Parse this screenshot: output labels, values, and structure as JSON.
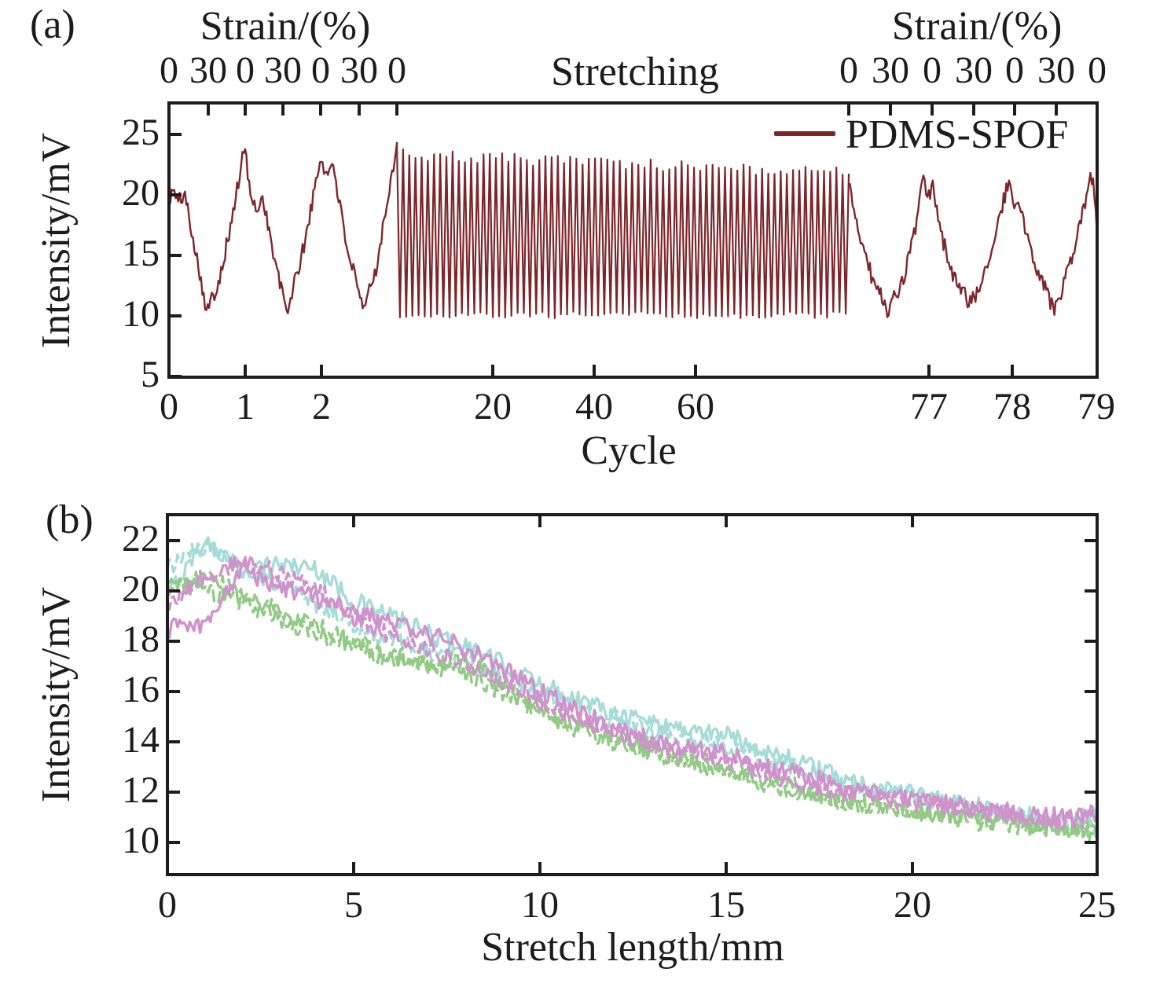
{
  "chart_data": [
    {
      "id": "a",
      "type": "line",
      "panel_label": "(a)",
      "ylabel": "Intensity/mV",
      "xlabel": "Cycle",
      "y_tick_labels": [
        "25",
        "20",
        "15",
        "10",
        "5"
      ],
      "x_tick_labels": [
        "0",
        "1",
        "2",
        "20",
        "40",
        "60",
        "77",
        "78",
        "79"
      ],
      "ylim": [
        5,
        27.6
      ],
      "x_scale": "piecewise broken axis: cycles 0-3 expanded, 3-76 compressed, 77-79 expanded",
      "top_axis": {
        "title_left": "Strain/(%)",
        "title_right": "Strain/(%)",
        "center_annotation": "Stretching",
        "tick_labels_left": [
          "0",
          "30",
          "0",
          "30",
          "0",
          "30",
          "0"
        ],
        "tick_labels_right": [
          "0",
          "30",
          "0",
          "30",
          "0",
          "30",
          "0"
        ]
      },
      "legend": [
        {
          "label": "PDMS-SPOF",
          "color": "#7d262a",
          "line": "solid"
        }
      ],
      "series_color": "#7d262a",
      "noise_mV": 0.7,
      "left_cycles_envelope": [
        [
          0,
          19.6
        ],
        [
          0.06,
          20.4
        ],
        [
          0.12,
          19.3
        ],
        [
          0.2,
          20.2
        ],
        [
          0.32,
          16.5
        ],
        [
          0.5,
          10.3
        ],
        [
          0.64,
          12.6
        ],
        [
          0.8,
          17.0
        ],
        [
          1.0,
          24.1
        ],
        [
          1.07,
          19.8
        ],
        [
          1.14,
          18.8
        ],
        [
          1.24,
          19.8
        ],
        [
          1.38,
          14.8
        ],
        [
          1.55,
          10.3
        ],
        [
          1.75,
          15.0
        ],
        [
          2.0,
          23.1
        ],
        [
          2.08,
          21.5
        ],
        [
          2.16,
          22.8
        ],
        [
          2.3,
          17.0
        ],
        [
          2.55,
          10.3
        ],
        [
          2.72,
          13.8
        ],
        [
          2.9,
          20.5
        ],
        [
          3.0,
          24.3
        ]
      ],
      "dense_section": {
        "cycle_start": 3,
        "cycle_end": 76,
        "num_cycles": 73,
        "first_peak_mV": 24.3,
        "peak_start_mV": 23.3,
        "peak_end_mV": 21.8,
        "valley_mV": 9.8
      },
      "right_cycles_envelope": [
        [
          76.04,
          20.8
        ],
        [
          76.16,
          17.0
        ],
        [
          76.32,
          13.2
        ],
        [
          76.5,
          10.5
        ],
        [
          76.66,
          12.2
        ],
        [
          76.82,
          16.5
        ],
        [
          76.93,
          21.6
        ],
        [
          76.98,
          19.2
        ],
        [
          77.04,
          20.9
        ],
        [
          77.14,
          16.8
        ],
        [
          77.32,
          12.8
        ],
        [
          77.5,
          10.9
        ],
        [
          77.7,
          14.2
        ],
        [
          77.88,
          19.2
        ],
        [
          77.95,
          21.2
        ],
        [
          78.01,
          18.7
        ],
        [
          78.07,
          19.5
        ],
        [
          78.22,
          15.2
        ],
        [
          78.5,
          10.4
        ],
        [
          78.72,
          14.8
        ],
        [
          78.9,
          20.4
        ],
        [
          78.96,
          21.9
        ],
        [
          79.0,
          17.7
        ]
      ]
    },
    {
      "id": "b",
      "type": "line",
      "panel_label": "(b)",
      "ylabel": "Intensity/mV",
      "xlabel": "Stretch length/mm",
      "x_tick_labels": [
        "0",
        "5",
        "10",
        "15",
        "20",
        "25"
      ],
      "y_tick_labels": [
        "22",
        "20",
        "18",
        "16",
        "14",
        "12",
        "10"
      ],
      "x_ticks": [
        0,
        5,
        10,
        15,
        20,
        25
      ],
      "y_ticks": [
        22,
        20,
        18,
        16,
        14,
        12,
        10
      ],
      "xlim": [
        0,
        25
      ],
      "ylim": [
        8.8,
        23.0
      ],
      "x_mm": [
        0,
        1,
        2,
        3,
        4,
        5,
        6,
        7,
        8,
        9,
        10,
        11,
        12,
        13,
        14,
        15,
        16,
        17,
        18,
        19,
        20,
        21,
        22,
        23,
        24,
        25
      ],
      "noise_mV": 0.38,
      "series": [
        {
          "name": "trace-cyan-solid",
          "color": "#a5dcd7",
          "style": "solid",
          "values": [
            19.8,
            22.0,
            20.8,
            21.1,
            20.9,
            19.6,
            19.0,
            18.3,
            17.8,
            17.1,
            16.3,
            15.7,
            15.2,
            14.8,
            14.5,
            14.3,
            13.7,
            13.2,
            12.6,
            12.2,
            11.9,
            11.6,
            11.4,
            11.1,
            10.9,
            11.1
          ]
        },
        {
          "name": "trace-cyan-dashed",
          "color": "#a5dcd7",
          "style": "dashed",
          "values": [
            20.9,
            21.8,
            20.9,
            20.3,
            19.5,
            18.7,
            18.1,
            17.6,
            17.2,
            16.6,
            15.9,
            15.3,
            14.9,
            14.4,
            14.1,
            13.8,
            13.4,
            12.9,
            12.4,
            12.0,
            11.8,
            11.5,
            11.2,
            10.9,
            10.7,
            10.5
          ]
        },
        {
          "name": "trace-green-dashed-1",
          "color": "#92ca86",
          "style": "dashed",
          "values": [
            20.4,
            20.0,
            19.6,
            18.9,
            18.3,
            17.8,
            17.3,
            17.0,
            17.3,
            16.2,
            15.4,
            14.7,
            14.2,
            13.8,
            13.4,
            13.0,
            12.6,
            12.2,
            11.8,
            11.5,
            11.3,
            11.1,
            10.9,
            10.8,
            10.6,
            10.3
          ]
        },
        {
          "name": "trace-green-dashed-2",
          "color": "#92ca86",
          "style": "dashed",
          "values": [
            19.9,
            20.6,
            19.9,
            19.2,
            18.6,
            18.0,
            17.5,
            17.1,
            16.7,
            16.0,
            15.2,
            14.5,
            14.0,
            13.6,
            13.2,
            12.8,
            12.4,
            12.0,
            11.7,
            11.4,
            11.2,
            11.0,
            10.8,
            10.6,
            10.5,
            10.6
          ]
        },
        {
          "name": "trace-magenta-solid",
          "color": "#d092cc",
          "style": "solid",
          "values": [
            18.5,
            18.6,
            20.9,
            20.1,
            19.7,
            19.2,
            18.7,
            18.3,
            17.8,
            16.9,
            16.0,
            15.2,
            14.6,
            14.1,
            13.8,
            13.5,
            13.1,
            12.7,
            12.3,
            11.9,
            11.7,
            11.5,
            11.3,
            11.2,
            11.0,
            11.2
          ]
        },
        {
          "name": "trace-magenta-dashed",
          "color": "#d092cc",
          "style": "dashed",
          "values": [
            19.4,
            20.6,
            21.2,
            20.7,
            20.1,
            18.9,
            18.2,
            17.7,
            17.2,
            16.4,
            15.6,
            14.9,
            14.4,
            13.9,
            13.5,
            13.2,
            12.8,
            12.4,
            12.0,
            11.8,
            11.6,
            11.4,
            11.2,
            11.0,
            10.8,
            11.0
          ]
        }
      ]
    }
  ]
}
